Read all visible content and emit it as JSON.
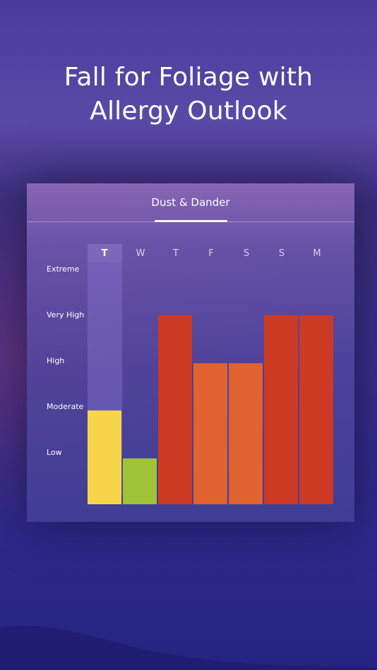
{
  "headline": {
    "line1": "Fall for Foliage with",
    "line2": "Allergy Outlook"
  },
  "card": {
    "tab_label": "Dust & Dander",
    "days": [
      "T",
      "W",
      "T",
      "F",
      "S",
      "S",
      "M"
    ],
    "active_day_index": 0,
    "levels": [
      "Extreme",
      "Very High",
      "High",
      "Moderate",
      "Low"
    ],
    "forecast_levels": [
      "Moderate",
      "Low",
      "Very High",
      "High",
      "High",
      "Very High",
      "Very High"
    ],
    "colors": {
      "Low": "#9fc43a",
      "Moderate": "#f7d54a",
      "High": "#e0622f",
      "Very High": "#cc3a24"
    }
  }
}
